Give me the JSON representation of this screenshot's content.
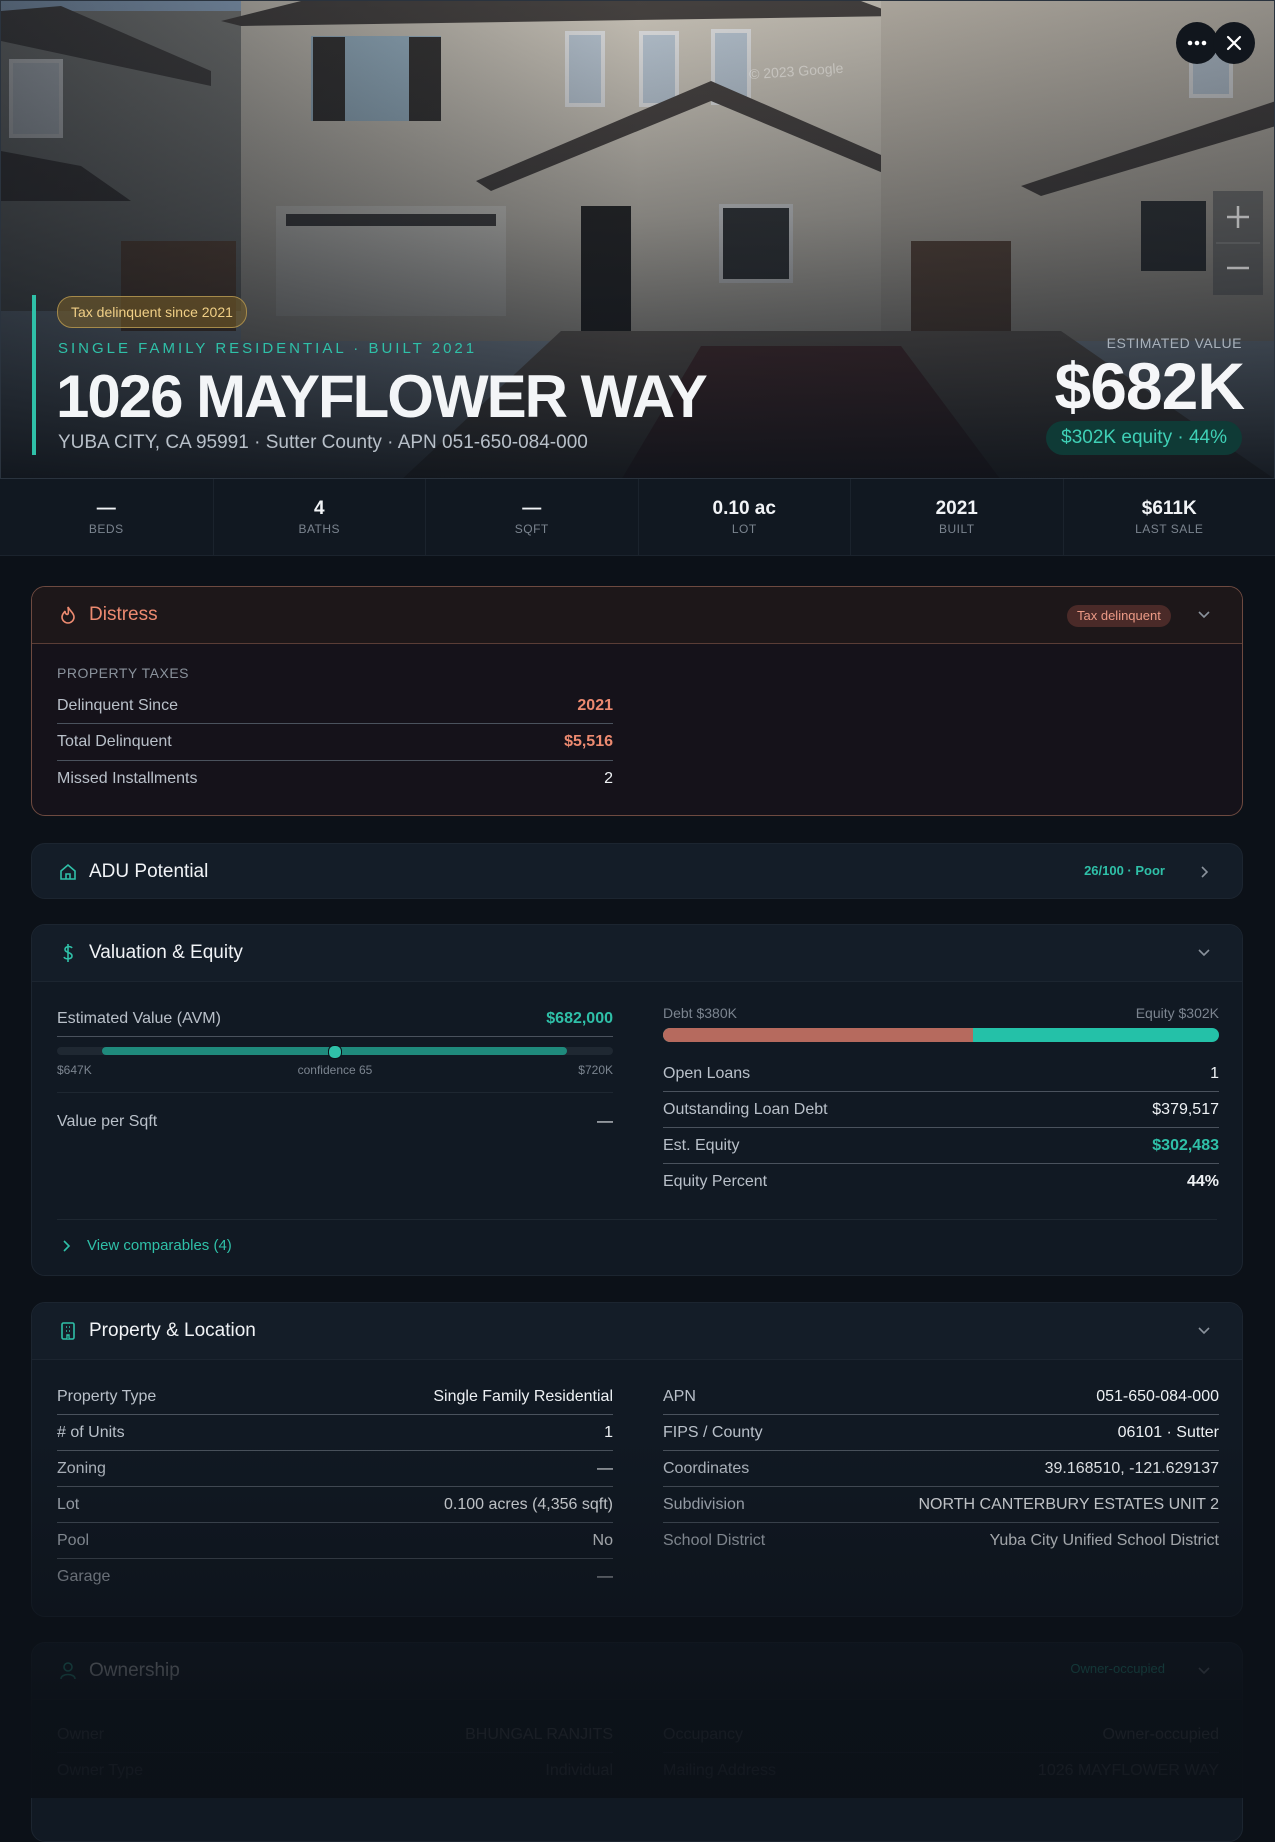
{
  "hero": {
    "watermark": "© 2023 Google",
    "badge": "Tax delinquent since 2021",
    "subtitle": "SINGLE FAMILY RESIDENTIAL · BUILT 2021",
    "title": "1026 MAYFLOWER WAY",
    "address": "YUBA CITY, CA 95991 · Sutter County · APN 051-650-084-000",
    "value_label": "ESTIMATED VALUE",
    "value": "$682K",
    "equity": "$302K equity · 44%"
  },
  "stats": [
    {
      "value": "—",
      "label": "BEDS"
    },
    {
      "value": "4",
      "label": "BATHS"
    },
    {
      "value": "—",
      "label": "SQFT"
    },
    {
      "value": "0.10 ac",
      "label": "LOT"
    },
    {
      "value": "2021",
      "label": "BUILT"
    },
    {
      "value": "$611K",
      "label": "LAST SALE"
    }
  ],
  "distress": {
    "title": "Distress",
    "tag": "Tax delinquent",
    "section": "PROPERTY TAXES",
    "rows": [
      [
        "Delinquent Since",
        "2021"
      ],
      [
        "Total Delinquent",
        "$5,516"
      ],
      [
        "Missed Installments",
        "2"
      ]
    ]
  },
  "adu": {
    "title": "ADU Potential",
    "score": "26/100 · Poor"
  },
  "valuation": {
    "title": "Valuation & Equity",
    "avm_label": "Estimated Value (AVM)",
    "avm_value": "$682,000",
    "range_low": "$647K",
    "confidence": "confidence 65",
    "range_high": "$720K",
    "per_sqft_label": "Value per Sqft",
    "per_sqft_value": "—",
    "debt_label": "Debt $380K",
    "equity_label": "Equity $302K",
    "rows": [
      [
        "Open Loans",
        "1"
      ],
      [
        "Outstanding Loan Debt",
        "$379,517"
      ],
      [
        "Est. Equity",
        "$302,483"
      ],
      [
        "Equity Percent",
        "44%"
      ]
    ],
    "comparables": "View comparables (4)"
  },
  "property": {
    "title": "Property & Location",
    "left": [
      [
        "Property Type",
        "Single Family Residential"
      ],
      [
        "# of Units",
        "1"
      ],
      [
        "Zoning",
        "—"
      ],
      [
        "Lot",
        "0.100 acres (4,356 sqft)"
      ],
      [
        "Pool",
        "No"
      ],
      [
        "Garage",
        "—"
      ]
    ],
    "right": [
      [
        "APN",
        "051-650-084-000"
      ],
      [
        "FIPS / County",
        "06101 · Sutter"
      ],
      [
        "Coordinates",
        "39.168510, -121.629137"
      ],
      [
        "Subdivision",
        "NORTH CANTERBURY ESTATES UNIT 2"
      ],
      [
        "School District",
        "Yuba City Unified School District"
      ]
    ]
  },
  "ownership": {
    "title": "Ownership",
    "tag": "Owner-occupied",
    "left": [
      [
        "Owner",
        "BHUNGAL RANJITS"
      ],
      [
        "Owner Type",
        "Individual"
      ]
    ],
    "right": [
      [
        "Occupancy",
        "Owner-occupied"
      ],
      [
        "Mailing Address",
        "1026 MAYFLOWER WAY"
      ]
    ]
  }
}
